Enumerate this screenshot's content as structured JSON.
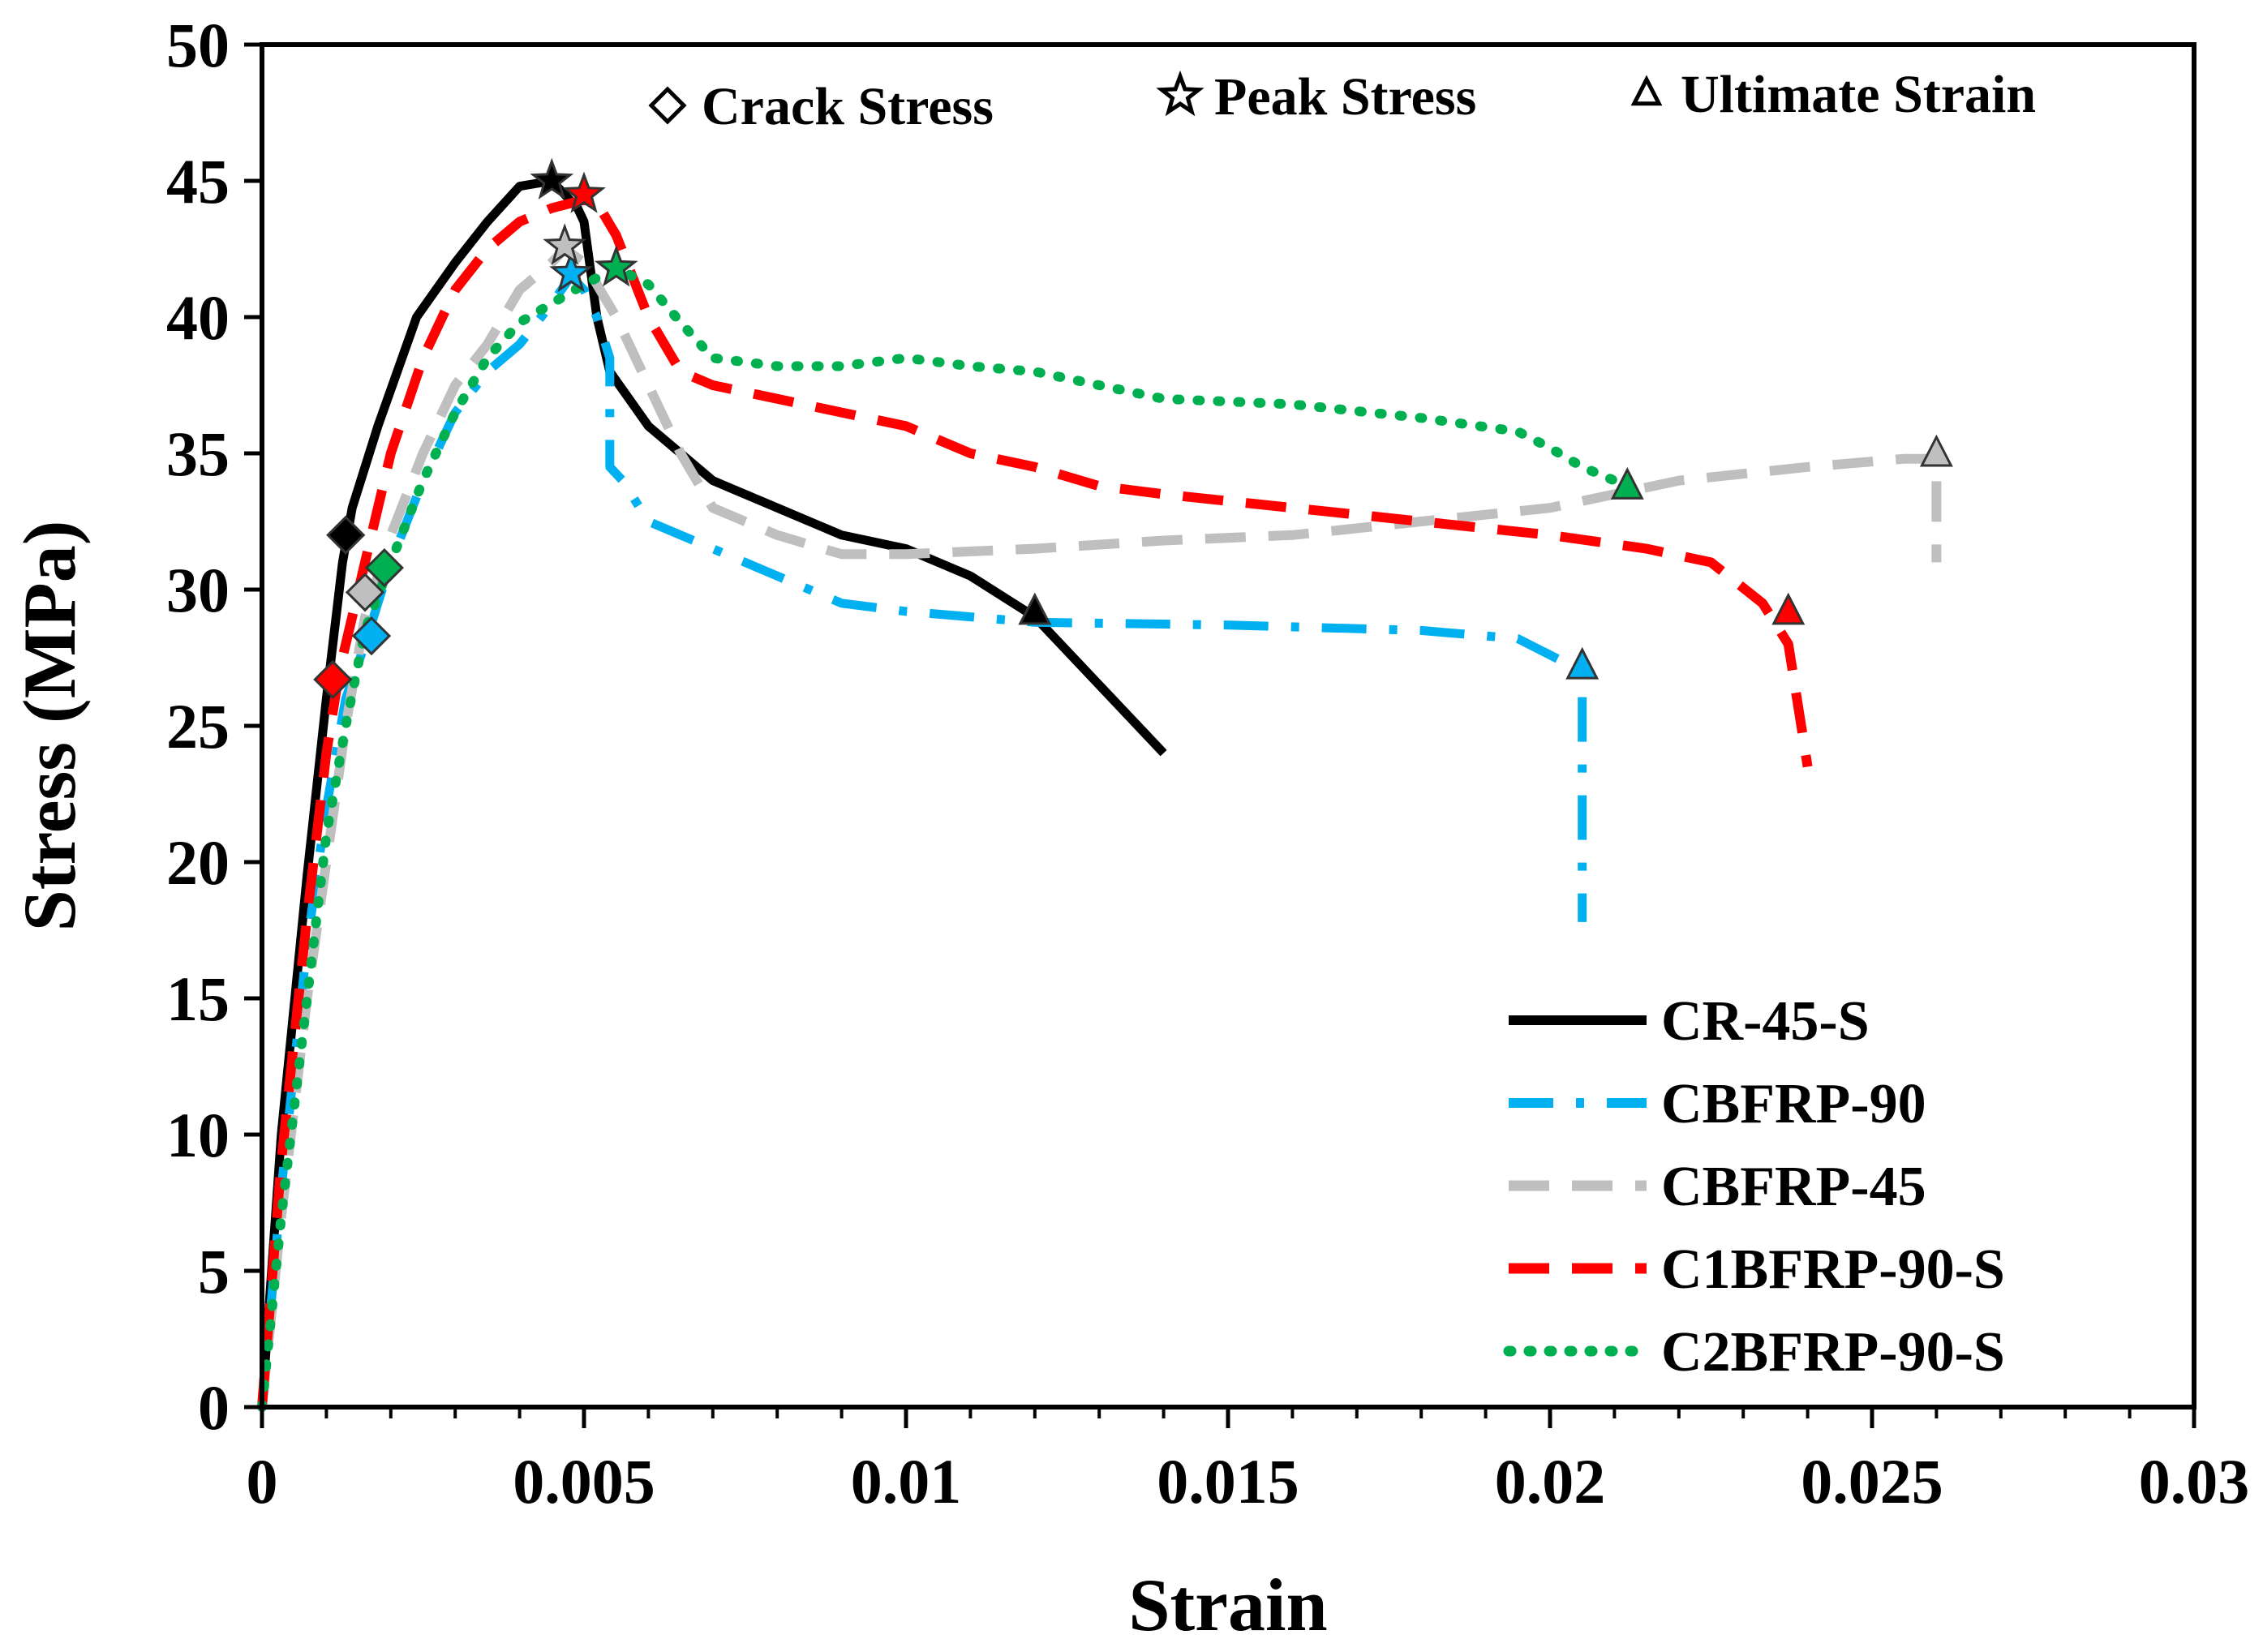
{
  "chart_data": {
    "type": "line",
    "title": "",
    "xlabel": "Strain",
    "ylabel": "Stress (MPa)",
    "xlim": [
      0,
      0.03
    ],
    "ylim": [
      0,
      50
    ],
    "xticks": [
      0,
      0.005,
      0.01,
      0.015,
      0.02,
      0.025,
      0.03
    ],
    "xtick_labels": [
      "0",
      "0.005",
      "0.01",
      "0.015",
      "0.02",
      "0.025",
      "0.03"
    ],
    "yticks": [
      0,
      5,
      10,
      15,
      20,
      25,
      30,
      35,
      40,
      45,
      50
    ],
    "ytick_labels": [
      "0",
      "5",
      "10",
      "15",
      "20",
      "25",
      "30",
      "35",
      "40",
      "45",
      "50"
    ],
    "grid": false,
    "legend_position": "bottom-right",
    "marker_legend": [
      {
        "marker": "diamond",
        "label": "Crack Stress"
      },
      {
        "marker": "star",
        "label": "Peak Stress"
      },
      {
        "marker": "triangle",
        "label": "Ultimate Strain"
      }
    ],
    "series": [
      {
        "name": "CR-45-S",
        "color": "#000000",
        "style": "solid",
        "x": [
          0,
          0.0003,
          0.0007,
          0.001,
          0.00125,
          0.0014,
          0.0018,
          0.0024,
          0.003,
          0.0035,
          0.004,
          0.0045,
          0.0047,
          0.0049,
          0.005,
          0.0052,
          0.0054,
          0.006,
          0.007,
          0.008,
          0.009,
          0.01,
          0.011,
          0.012,
          0.013,
          0.014
        ],
        "y": [
          0,
          10,
          19.5,
          26,
          31,
          33,
          36,
          40,
          42,
          43.5,
          44.8,
          45,
          44.5,
          44,
          43.5,
          40,
          38,
          36,
          34,
          33,
          32,
          31.5,
          30.5,
          29,
          26.5,
          24
        ],
        "crack": [
          0.0013,
          32
        ],
        "peak": [
          0.0045,
          45
        ],
        "ultimate": [
          0.012,
          29.2
        ]
      },
      {
        "name": "CBFRP-90",
        "color": "#00B0F0",
        "style": "dashdot",
        "x": [
          0,
          0.0003,
          0.0007,
          0.001,
          0.0013,
          0.0016,
          0.002,
          0.0025,
          0.003,
          0.0035,
          0.004,
          0.0045,
          0.0048,
          0.005,
          0.0052,
          0.0054,
          0.0054,
          0.0056,
          0.006,
          0.007,
          0.008,
          0.009,
          0.01,
          0.011,
          0.012,
          0.015,
          0.018,
          0.0195,
          0.0205,
          0.0205,
          0.0205
        ],
        "y": [
          0,
          8,
          17,
          22,
          26,
          28,
          31,
          34,
          36.5,
          38,
          39,
          40.5,
          41.5,
          41,
          40,
          38.5,
          34.5,
          34,
          32.5,
          31.5,
          30.5,
          29.5,
          29.2,
          29,
          28.8,
          28.7,
          28.5,
          28.2,
          27,
          22,
          17.8
        ],
        "crack": [
          0.0017,
          28.3
        ],
        "peak": [
          0.0048,
          41.6
        ],
        "ultimate": [
          0.0205,
          27.2
        ]
      },
      {
        "name": "CBFRP-45",
        "color": "#BFBFBF",
        "style": "dashed",
        "x": [
          0,
          0.0003,
          0.0007,
          0.001,
          0.0013,
          0.0016,
          0.002,
          0.0025,
          0.003,
          0.0035,
          0.004,
          0.0045,
          0.0047,
          0.005,
          0.0055,
          0.006,
          0.0065,
          0.007,
          0.008,
          0.009,
          0.01,
          0.012,
          0.014,
          0.016,
          0.018,
          0.02,
          0.022,
          0.024,
          0.0255,
          0.026,
          0.026
        ],
        "y": [
          0,
          7,
          15,
          20,
          25,
          29,
          32,
          35,
          37.5,
          39,
          41,
          42,
          42.5,
          42,
          40,
          37.5,
          35,
          33,
          32,
          31.3,
          31.3,
          31.5,
          31.8,
          32,
          32.5,
          33,
          34,
          34.5,
          34.8,
          34.8,
          31
        ],
        "crack": [
          0.0016,
          29.9
        ],
        "peak": [
          0.0047,
          42.6
        ],
        "ultimate": [
          0.026,
          35
        ]
      },
      {
        "name": "C1BFRP-90-S",
        "color": "#FF0000",
        "style": "dashed",
        "x": [
          0,
          0.0003,
          0.0007,
          0.001,
          0.0012,
          0.0014,
          0.0016,
          0.002,
          0.0025,
          0.003,
          0.0035,
          0.004,
          0.0045,
          0.005,
          0.0052,
          0.0055,
          0.006,
          0.0065,
          0.007,
          0.008,
          0.009,
          0.01,
          0.011,
          0.012,
          0.013,
          0.014,
          0.016,
          0.018,
          0.02,
          0.0215,
          0.0225,
          0.0233,
          0.0237,
          0.0239,
          0.024
        ],
        "y": [
          0,
          9,
          18,
          24,
          27,
          29,
          31,
          35,
          38.5,
          41,
          42.5,
          43.5,
          44,
          44.3,
          44.2,
          43,
          40,
          38,
          37.5,
          37,
          36.5,
          36,
          35,
          34.5,
          33.8,
          33.5,
          33,
          32.5,
          32,
          31.5,
          31,
          29.5,
          28,
          25,
          23.5
        ],
        "crack": [
          0.0011,
          26.7
        ],
        "peak": [
          0.005,
          44.5
        ],
        "ultimate": [
          0.0237,
          29.2
        ]
      },
      {
        "name": "C2BFRP-90-S",
        "color": "#00B050",
        "style": "dotted",
        "x": [
          0,
          0.0003,
          0.0007,
          0.001,
          0.0013,
          0.0016,
          0.002,
          0.0025,
          0.003,
          0.0035,
          0.004,
          0.0045,
          0.005,
          0.0055,
          0.006,
          0.0065,
          0.007,
          0.008,
          0.009,
          0.01,
          0.011,
          0.012,
          0.014,
          0.016,
          0.018,
          0.0195,
          0.02,
          0.0205,
          0.0212
        ],
        "y": [
          0,
          7,
          15,
          21,
          25,
          28.5,
          31,
          34,
          36.5,
          38.5,
          39.8,
          40.5,
          41.2,
          41.8,
          41.2,
          39.8,
          38.5,
          38.2,
          38.2,
          38.5,
          38.2,
          38,
          37,
          36.8,
          36.3,
          35.8,
          35.2,
          34.5,
          33.8
        ],
        "crack": [
          0.0019,
          30.8
        ],
        "peak": [
          0.0055,
          41.8
        ],
        "ultimate": [
          0.0212,
          33.8
        ]
      }
    ]
  }
}
